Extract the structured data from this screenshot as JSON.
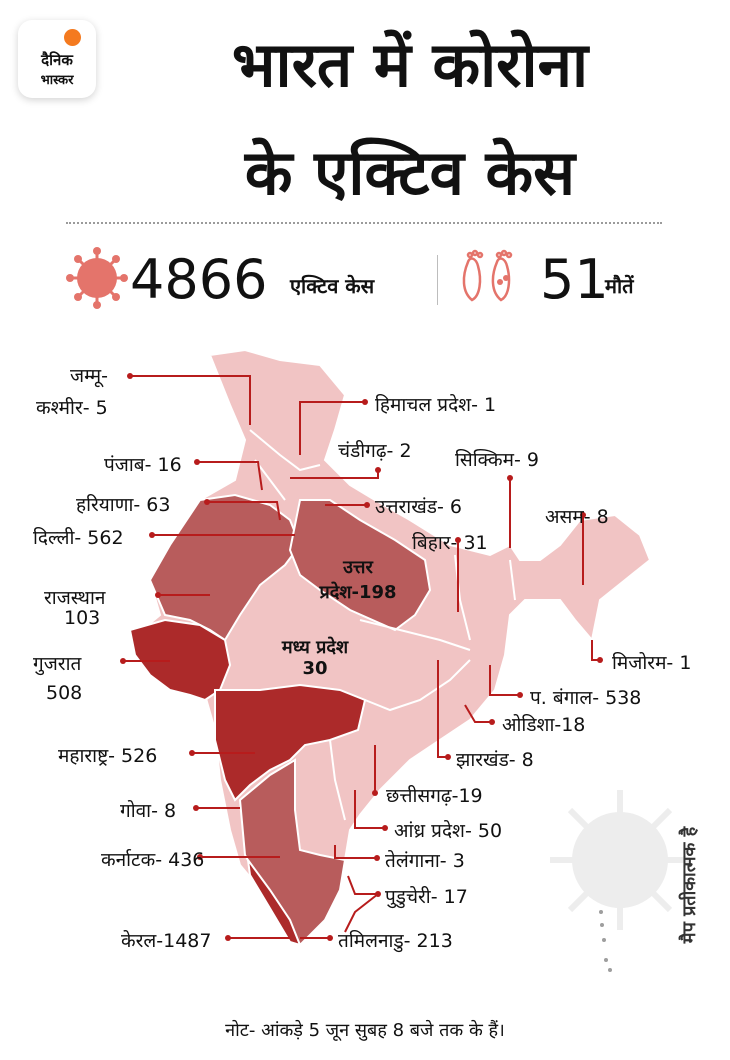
{
  "logo": {
    "line1": "दैनिक",
    "line2": "भास्कर"
  },
  "title": {
    "line1": "भारत में कोरोना",
    "line2": "के एक्टिव केस"
  },
  "stats": {
    "active_value": "4866",
    "active_label": "एक्टिव केस",
    "deaths_value": "51",
    "deaths_label": "मौतें"
  },
  "map_labels": {
    "jk_1": "जम्मू-",
    "jk_2": "कश्मीर- 5",
    "hp": "हिमाचल प्रदेश- 1",
    "chd": "चंडीगढ़- 2",
    "pb": "पंजाब- 16",
    "sk": "सिक्किम- 9",
    "hr": "हरियाणा- 63",
    "uk": "उत्तराखंड- 6",
    "as": "असम- 8",
    "dl": "दिल्ली- 562",
    "br": "बिहार- 31",
    "up_1": "उत्तर",
    "up_2": "प्रदेश-198",
    "rj_1": "राजस्थान",
    "rj_2": "103",
    "gj_1": "गुजरात",
    "gj_2": "508",
    "mp_1": "मध्य प्रदेश",
    "mp_2": "30",
    "mz": "मिजोरम- 1",
    "wb": "प. बंगाल- 538",
    "od": "ओडिशा-18",
    "mh": "महाराष्ट्र- 526",
    "jh": "झारखंड- 8",
    "cg": "छत्तीसगढ़-19",
    "ga": "गोवा- 8",
    "ap": "आंध्र प्रदेश- 50",
    "ka": "कर्नाटक- 436",
    "tg": "तेलंगाना- 3",
    "py": "पुडुचेरी- 17",
    "kl": "केरल-1487",
    "tn": "तमिलनाडु- 213"
  },
  "map_note": "मैप प्रतीकात्मक है",
  "footer_note": "नोट- आंकड़े 5 जून सुबह 8 बजे तक के हैं।",
  "colors": {
    "light": "#f1c4c4",
    "medium": "#b85c5c",
    "dark": "#ac2a2a",
    "leader": "#b71c1c",
    "accent": "#f47a1f"
  }
}
